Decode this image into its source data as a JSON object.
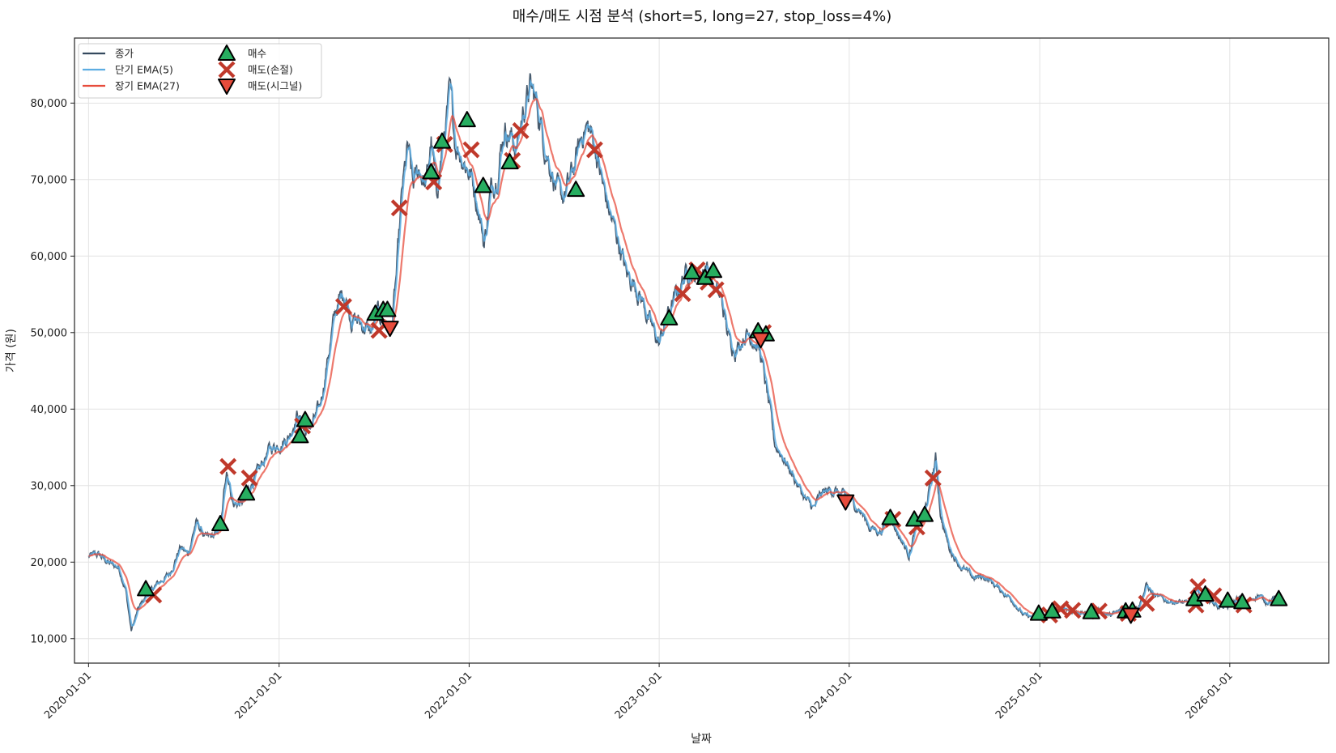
{
  "chart_data": {
    "type": "line",
    "title": "매수/매도 시점 분석 (short=5, long=27, stop_loss=4%)",
    "xlabel": "날짜",
    "ylabel": "가격 (원)",
    "x_range": [
      "2019-12-05",
      "2026-07-10"
    ],
    "ylim": [
      6800,
      88500
    ],
    "grid": true,
    "legend_position": "top-left",
    "x_ticks": [
      "2020-01-01",
      "2021-01-01",
      "2022-01-01",
      "2023-01-01",
      "2024-01-01",
      "2025-01-01",
      "2026-01-01"
    ],
    "y_ticks": [
      10000,
      20000,
      30000,
      40000,
      50000,
      60000,
      70000,
      80000
    ],
    "y_tick_labels": [
      "10,000",
      "20,000",
      "30,000",
      "40,000",
      "50,000",
      "60,000",
      "70,000",
      "80,000"
    ],
    "colors": {
      "close": "#34495e",
      "ema_short": "#5dade2",
      "ema_long": "#e74c3c",
      "buy": "#27ae60",
      "sell_stop": "#c0392b",
      "sell_signal": "#e74c3c"
    },
    "legend": [
      {
        "label": "종가",
        "kind": "line",
        "color": "#34495e"
      },
      {
        "label": "단기 EMA(5)",
        "kind": "line",
        "color": "#5dade2"
      },
      {
        "label": "장기 EMA(27)",
        "kind": "line",
        "color": "#e74c3c"
      },
      {
        "label": "매수",
        "kind": "triangle-up",
        "color": "#27ae60"
      },
      {
        "label": "매도(손절)",
        "kind": "x",
        "color": "#c0392b"
      },
      {
        "label": "매도(시그널)",
        "kind": "triangle-down",
        "color": "#e74c3c"
      }
    ],
    "price_anchors": [
      [
        "2020-01-01",
        20700
      ],
      [
        "2020-01-20",
        21000
      ],
      [
        "2020-02-10",
        19800
      ],
      [
        "2020-02-28",
        19300
      ],
      [
        "2020-03-12",
        16500
      ],
      [
        "2020-03-23",
        11000
      ],
      [
        "2020-04-05",
        13800
      ],
      [
        "2020-04-20",
        15500
      ],
      [
        "2020-05-10",
        17000
      ],
      [
        "2020-06-05",
        18500
      ],
      [
        "2020-06-25",
        22000
      ],
      [
        "2020-07-10",
        21000
      ],
      [
        "2020-07-25",
        25200
      ],
      [
        "2020-08-15",
        23000
      ],
      [
        "2020-09-01",
        23500
      ],
      [
        "2020-09-12",
        25000
      ],
      [
        "2020-09-22",
        32500
      ],
      [
        "2020-10-05",
        27500
      ],
      [
        "2020-10-25",
        27800
      ],
      [
        "2020-11-10",
        30500
      ],
      [
        "2020-11-25",
        32000
      ],
      [
        "2020-12-10",
        34500
      ],
      [
        "2021-01-01",
        35500
      ],
      [
        "2021-01-20",
        36500
      ],
      [
        "2021-02-05",
        39500
      ],
      [
        "2021-02-20",
        37000
      ],
      [
        "2021-03-05",
        38000
      ],
      [
        "2021-03-20",
        40000
      ],
      [
        "2021-04-05",
        47000
      ],
      [
        "2021-04-20",
        53000
      ],
      [
        "2021-05-05",
        55500
      ],
      [
        "2021-05-20",
        52000
      ],
      [
        "2021-06-10",
        51000
      ],
      [
        "2021-06-28",
        50000
      ],
      [
        "2021-07-10",
        52500
      ],
      [
        "2021-07-22",
        51500
      ],
      [
        "2021-08-05",
        50500
      ],
      [
        "2021-08-15",
        58000
      ],
      [
        "2021-08-25",
        68000
      ],
      [
        "2021-09-05",
        74000
      ],
      [
        "2021-09-15",
        69000
      ],
      [
        "2021-09-28",
        71500
      ],
      [
        "2021-10-10",
        69000
      ],
      [
        "2021-10-20",
        75000
      ],
      [
        "2021-10-30",
        68000
      ],
      [
        "2021-11-10",
        74000
      ],
      [
        "2021-11-25",
        81000
      ],
      [
        "2021-12-05",
        75000
      ],
      [
        "2021-12-20",
        73000
      ],
      [
        "2022-01-05",
        70500
      ],
      [
        "2022-01-20",
        66000
      ],
      [
        "2022-01-30",
        61500
      ],
      [
        "2022-02-10",
        68000
      ],
      [
        "2022-02-25",
        71500
      ],
      [
        "2022-03-10",
        77000
      ],
      [
        "2022-03-20",
        76000
      ],
      [
        "2022-04-01",
        74000
      ],
      [
        "2022-04-15",
        79000
      ],
      [
        "2022-04-28",
        82000
      ],
      [
        "2022-05-10",
        80000
      ],
      [
        "2022-05-25",
        75000
      ],
      [
        "2022-06-10",
        71000
      ],
      [
        "2022-06-25",
        67000
      ],
      [
        "2022-07-10",
        69000
      ],
      [
        "2022-07-25",
        72500
      ],
      [
        "2022-08-10",
        77000
      ],
      [
        "2022-08-20",
        76500
      ],
      [
        "2022-09-01",
        74000
      ],
      [
        "2022-09-15",
        69000
      ],
      [
        "2022-09-30",
        65000
      ],
      [
        "2022-10-15",
        62000
      ],
      [
        "2022-10-30",
        57500
      ],
      [
        "2022-11-15",
        56500
      ],
      [
        "2022-12-01",
        54000
      ],
      [
        "2022-12-15",
        51000
      ],
      [
        "2023-01-01",
        48500
      ],
      [
        "2023-01-15",
        52000
      ],
      [
        "2023-02-01",
        54500
      ],
      [
        "2023-02-15",
        57000
      ],
      [
        "2023-03-01",
        58500
      ],
      [
        "2023-03-15",
        57000
      ],
      [
        "2023-04-01",
        59000
      ],
      [
        "2023-04-15",
        56000
      ],
      [
        "2023-05-01",
        54000
      ],
      [
        "2023-05-15",
        49000
      ],
      [
        "2023-05-30",
        48000
      ],
      [
        "2023-06-15",
        50000
      ],
      [
        "2023-07-01",
        49500
      ],
      [
        "2023-07-15",
        47000
      ],
      [
        "2023-08-01",
        40000
      ],
      [
        "2023-08-10",
        35500
      ],
      [
        "2023-08-25",
        34000
      ],
      [
        "2023-09-10",
        32000
      ],
      [
        "2023-09-25",
        30000
      ],
      [
        "2023-10-10",
        28000
      ],
      [
        "2023-10-25",
        27000
      ],
      [
        "2023-11-10",
        29000
      ],
      [
        "2023-12-01",
        29500
      ],
      [
        "2024-01-01",
        28000
      ],
      [
        "2024-01-20",
        27000
      ],
      [
        "2024-02-10",
        24500
      ],
      [
        "2024-03-01",
        24000
      ],
      [
        "2024-03-20",
        26000
      ],
      [
        "2024-04-05",
        23500
      ],
      [
        "2024-04-25",
        21000
      ],
      [
        "2024-05-10",
        25000
      ],
      [
        "2024-05-25",
        26500
      ],
      [
        "2024-06-08",
        31000
      ],
      [
        "2024-06-15",
        33500
      ],
      [
        "2024-06-25",
        26000
      ],
      [
        "2024-07-10",
        22000
      ],
      [
        "2024-08-01",
        19500
      ],
      [
        "2024-08-25",
        18000
      ],
      [
        "2024-09-20",
        18000
      ],
      [
        "2024-10-15",
        16500
      ],
      [
        "2024-11-10",
        15000
      ],
      [
        "2024-12-01",
        13000
      ],
      [
        "2024-12-20",
        12800
      ],
      [
        "2025-01-10",
        13200
      ],
      [
        "2025-02-01",
        13500
      ],
      [
        "2025-02-20",
        14000
      ],
      [
        "2025-03-10",
        13500
      ],
      [
        "2025-04-01",
        13200
      ],
      [
        "2025-04-25",
        13700
      ],
      [
        "2025-05-15",
        13000
      ],
      [
        "2025-06-05",
        13600
      ],
      [
        "2025-06-25",
        14000
      ],
      [
        "2025-07-10",
        14300
      ],
      [
        "2025-07-25",
        17000
      ],
      [
        "2025-08-10",
        15500
      ],
      [
        "2025-09-01",
        15000
      ],
      [
        "2025-09-25",
        14800
      ],
      [
        "2025-10-15",
        14500
      ],
      [
        "2025-10-28",
        16500
      ],
      [
        "2025-11-10",
        15500
      ],
      [
        "2025-11-25",
        15000
      ],
      [
        "2025-12-10",
        14200
      ],
      [
        "2025-12-28",
        14000
      ],
      [
        "2026-01-15",
        15200
      ],
      [
        "2026-02-05",
        14800
      ],
      [
        "2026-02-25",
        15800
      ],
      [
        "2026-03-10",
        14800
      ],
      [
        "2026-03-25",
        15200
      ],
      [
        "2026-04-10",
        15000
      ]
    ],
    "buy_points": [
      [
        "2020-04-20",
        16500
      ],
      [
        "2020-09-10",
        25000
      ],
      [
        "2020-10-30",
        29000
      ],
      [
        "2021-02-10",
        36500
      ],
      [
        "2021-02-20",
        38600
      ],
      [
        "2021-07-05",
        52500
      ],
      [
        "2021-07-20",
        53000
      ],
      [
        "2021-07-28",
        53000
      ],
      [
        "2021-10-20",
        71000
      ],
      [
        "2021-11-10",
        75000
      ],
      [
        "2021-12-28",
        77800
      ],
      [
        "2022-01-28",
        69200
      ],
      [
        "2022-03-20",
        72300
      ],
      [
        "2022-07-25",
        68700
      ],
      [
        "2023-01-20",
        51900
      ],
      [
        "2023-03-05",
        57900
      ],
      [
        "2023-03-30",
        57200
      ],
      [
        "2023-04-15",
        58100
      ],
      [
        "2023-07-10",
        50200
      ],
      [
        "2023-07-25",
        49800
      ],
      [
        "2024-03-20",
        25800
      ],
      [
        "2024-05-05",
        25600
      ],
      [
        "2024-05-25",
        26200
      ],
      [
        "2024-12-30",
        13300
      ],
      [
        "2025-01-25",
        13600
      ],
      [
        "2025-04-10",
        13500
      ],
      [
        "2025-06-15",
        13600
      ],
      [
        "2025-06-28",
        13700
      ],
      [
        "2025-10-25",
        15200
      ],
      [
        "2025-11-15",
        15800
      ],
      [
        "2025-12-28",
        15000
      ],
      [
        "2026-01-25",
        14800
      ],
      [
        "2026-04-05",
        15200
      ]
    ],
    "sell_stop_points": [
      [
        "2020-05-05",
        15700
      ],
      [
        "2020-09-25",
        32500
      ],
      [
        "2020-11-05",
        31000
      ],
      [
        "2021-02-15",
        37800
      ],
      [
        "2021-05-05",
        53400
      ],
      [
        "2021-07-12",
        50300
      ],
      [
        "2021-08-20",
        66300
      ],
      [
        "2021-10-25",
        69700
      ],
      [
        "2021-11-15",
        74600
      ],
      [
        "2022-01-05",
        73900
      ],
      [
        "2022-03-25",
        72500
      ],
      [
        "2022-04-10",
        76400
      ],
      [
        "2022-08-30",
        73900
      ],
      [
        "2023-02-15",
        55100
      ],
      [
        "2023-03-15",
        58200
      ],
      [
        "2023-04-05",
        56600
      ],
      [
        "2023-04-20",
        55600
      ],
      [
        "2023-07-20",
        50000
      ],
      [
        "2024-03-25",
        25600
      ],
      [
        "2024-05-10",
        24600
      ],
      [
        "2024-06-10",
        31000
      ],
      [
        "2025-01-20",
        13100
      ],
      [
        "2025-02-10",
        13900
      ],
      [
        "2025-03-05",
        13700
      ],
      [
        "2025-04-25",
        13600
      ],
      [
        "2025-06-20",
        13300
      ],
      [
        "2025-07-25",
        14600
      ],
      [
        "2025-10-28",
        14400
      ],
      [
        "2025-11-01",
        16800
      ],
      [
        "2025-12-01",
        15600
      ],
      [
        "2026-01-28",
        14400
      ]
    ],
    "sell_signal_points": [
      [
        "2021-08-02",
        50600
      ],
      [
        "2023-07-15",
        49100
      ],
      [
        "2023-12-25",
        27900
      ],
      [
        "2025-06-25",
        13100
      ]
    ]
  }
}
